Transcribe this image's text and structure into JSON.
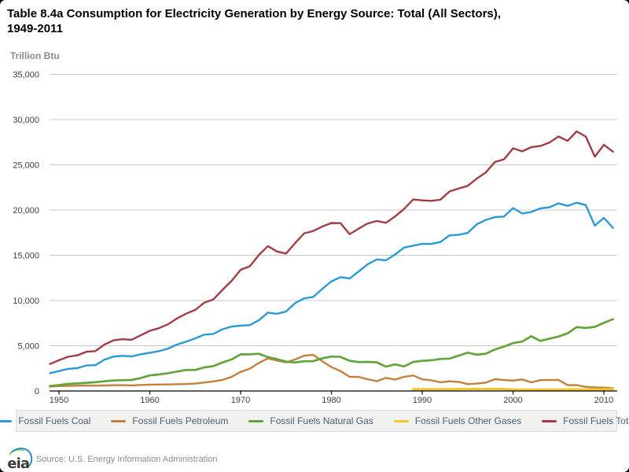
{
  "page": {
    "title_line1": "Table 8.4a Consumption for Electricity Generation by Energy Source: Total (All Sectors),",
    "title_line2": "1949-2011"
  },
  "footer": {
    "logo_text": "eia",
    "source": "Source: U.S. Energy Information Administration"
  },
  "colors": {
    "grid": "#c9c9c9",
    "axis": "#000000",
    "tick_label": "#3f3f3f",
    "unit_label": "#8a8a8a",
    "legend_bg": "#f1f1f0",
    "legend_border": "#dcdcdc",
    "legend_text": "#4a6078",
    "source_text": "#8c8c8c"
  },
  "chart_data": {
    "type": "line",
    "title": "Table 8.4a Consumption for Electricity Generation by Energy Source: Total (All Sectors), 1949-2011",
    "xlabel": "",
    "ylabel": "Trillion Btu",
    "ylim": [
      0,
      35000
    ],
    "ytick_step": 5000,
    "xlim": [
      1949,
      2011
    ],
    "x_step": 1,
    "xticks": [
      1950,
      1960,
      1970,
      1980,
      1990,
      2000,
      2010
    ],
    "grid": true,
    "legend_position": "bottom",
    "series": [
      {
        "name": "Fossil Fuels Coal",
        "color": "#2a9ad4",
        "line_width": 2.4,
        "values": [
          1964,
          2199,
          2446,
          2524,
          2815,
          2856,
          3458,
          3804,
          3885,
          3815,
          4063,
          4228,
          4399,
          4686,
          5131,
          5458,
          5821,
          6222,
          6314,
          6814,
          7124,
          7227,
          7274,
          7819,
          8658,
          8534,
          8786,
          9722,
          10238,
          10403,
          11290,
          12123,
          12583,
          12430,
          13213,
          14020,
          14542,
          14444,
          15087,
          15850,
          16058,
          16261,
          16250,
          16466,
          17196,
          17261,
          17466,
          18429,
          18904,
          19216,
          19279,
          20220,
          19614,
          19783,
          20185,
          20305,
          20737,
          20462,
          20808,
          20547,
          18274,
          19133,
          18038
        ]
      },
      {
        "name": "Fossil Fuels Petroleum",
        "color": "#c4803c",
        "line_width": 2.4,
        "values": [
          472,
          551,
          555,
          581,
          612,
          591,
          605,
          632,
          647,
          621,
          672,
          699,
          716,
          723,
          746,
          769,
          817,
          938,
          1058,
          1222,
          1556,
          2117,
          2462,
          3097,
          3609,
          3365,
          3166,
          3477,
          3901,
          3987,
          3283,
          2634,
          2202,
          1568,
          1544,
          1286,
          1090,
          1452,
          1264,
          1563,
          1715,
          1289,
          1179,
          953,
          1072,
          1007,
          755,
          819,
          921,
          1306,
          1210,
          1144,
          1275,
          959,
          1204,
          1212,
          1222,
          641,
          655,
          454,
          388,
          370,
          288
        ]
      },
      {
        "name": "Fossil Fuels Natural Gas",
        "color": "#64a43c",
        "line_width": 2.7,
        "values": [
          550,
          651,
          781,
          831,
          904,
          962,
          1068,
          1161,
          1191,
          1221,
          1424,
          1725,
          1825,
          1965,
          2144,
          2322,
          2321,
          2609,
          2746,
          3144,
          3487,
          4054,
          4040,
          4113,
          3748,
          3519,
          3240,
          3152,
          3284,
          3297,
          3613,
          3810,
          3765,
          3340,
          3190,
          3220,
          3161,
          2691,
          2935,
          2709,
          3210,
          3332,
          3404,
          3538,
          3584,
          3903,
          4237,
          4007,
          4122,
          4588,
          4902,
          5293,
          5458,
          6048,
          5542,
          5774,
          6015,
          6375,
          7064,
          6963,
          7083,
          7528,
          7936
        ]
      },
      {
        "name": "Fossil Fuels Other Gases",
        "color": "#f5c52c",
        "line_width": 3,
        "values": [
          null,
          null,
          null,
          null,
          null,
          null,
          null,
          null,
          null,
          null,
          null,
          null,
          null,
          null,
          null,
          null,
          null,
          null,
          null,
          null,
          null,
          null,
          null,
          null,
          null,
          null,
          null,
          null,
          null,
          null,
          null,
          null,
          null,
          null,
          null,
          null,
          null,
          null,
          null,
          null,
          185,
          190,
          182,
          189,
          203,
          215,
          211,
          223,
          213,
          215,
          205,
          168,
          137,
          158,
          147,
          161,
          156,
          164,
          170,
          166,
          161,
          180,
          190
        ]
      },
      {
        "name": "Fossil Fuels Total",
        "color": "#a43c45",
        "line_width": 2.4,
        "values": [
          2986,
          3401,
          3782,
          3936,
          4331,
          4409,
          5131,
          5597,
          5723,
          5657,
          6159,
          6652,
          6940,
          7374,
          8021,
          8549,
          8959,
          9769,
          10118,
          11180,
          12167,
          13398,
          13776,
          15029,
          16015,
          15418,
          15192,
          16349,
          17423,
          17687,
          18186,
          18567,
          18550,
          17338,
          17947,
          18526,
          18793,
          18587,
          19286,
          20122,
          21168,
          21072,
          21015,
          21146,
          22055,
          22386,
          22669,
          23478,
          24160,
          25325,
          25596,
          26825,
          26484,
          26948,
          27078,
          27452,
          28130,
          27642,
          28697,
          28130,
          25906,
          27211,
          26452
        ]
      }
    ]
  }
}
